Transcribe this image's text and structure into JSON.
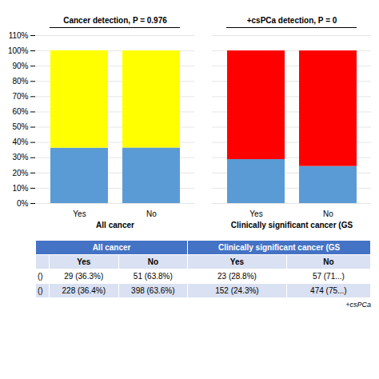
{
  "chart_data": {
    "type": "bar",
    "stacked": true,
    "grid": true,
    "categories": [
      "Yes",
      "No",
      "Yes",
      "No"
    ],
    "group": [
      "All cancer",
      "All cancer",
      "Clinically significant cancer (GS",
      "Clinically significant cancer (GS"
    ],
    "group_titles": [
      "Cancer detection, P = 0.976",
      "+csPCa detection, P = 0"
    ],
    "series": [
      {
        "color": "#5B9BD5",
        "values": [
          36.3,
          36.4,
          28.8,
          24.3
        ]
      },
      {
        "color": "#FFFF00",
        "values": [
          63.8,
          63.6,
          0,
          0
        ]
      },
      {
        "color": "#FF0000",
        "values": [
          0,
          0,
          71.2,
          75.7
        ]
      }
    ],
    "ylim": [
      0,
      110
    ],
    "yticks": [
      {
        "value": 0,
        "label": "0%"
      },
      {
        "value": 10,
        "label": "10%"
      },
      {
        "value": 20,
        "label": "20%"
      },
      {
        "value": 30,
        "label": "30%"
      },
      {
        "value": 40,
        "label": "40%"
      },
      {
        "value": 50,
        "label": "50%"
      },
      {
        "value": 60,
        "label": "60%"
      },
      {
        "value": 70,
        "label": "70%"
      },
      {
        "value": 80,
        "label": "80%"
      },
      {
        "value": 90,
        "label": "90%"
      },
      {
        "value": 100,
        "label": "100%"
      },
      {
        "value": 110,
        "label": "110%"
      }
    ],
    "table": {
      "header": [
        "All cancer",
        "Clinically significant cancer (GS"
      ],
      "columns": [
        "Yes",
        "No",
        "Yes",
        "No"
      ],
      "rows": [
        [
          "()",
          "29 (36.3%)",
          "51 (63.8%)",
          "23 (28.8%)",
          "57 (71...)"
        ],
        [
          "()",
          "228 (36.4%)",
          "398 (63.6%)",
          "152 (24.3%)",
          "474 (75...)"
        ]
      ]
    },
    "footnote": "+csPCa"
  }
}
